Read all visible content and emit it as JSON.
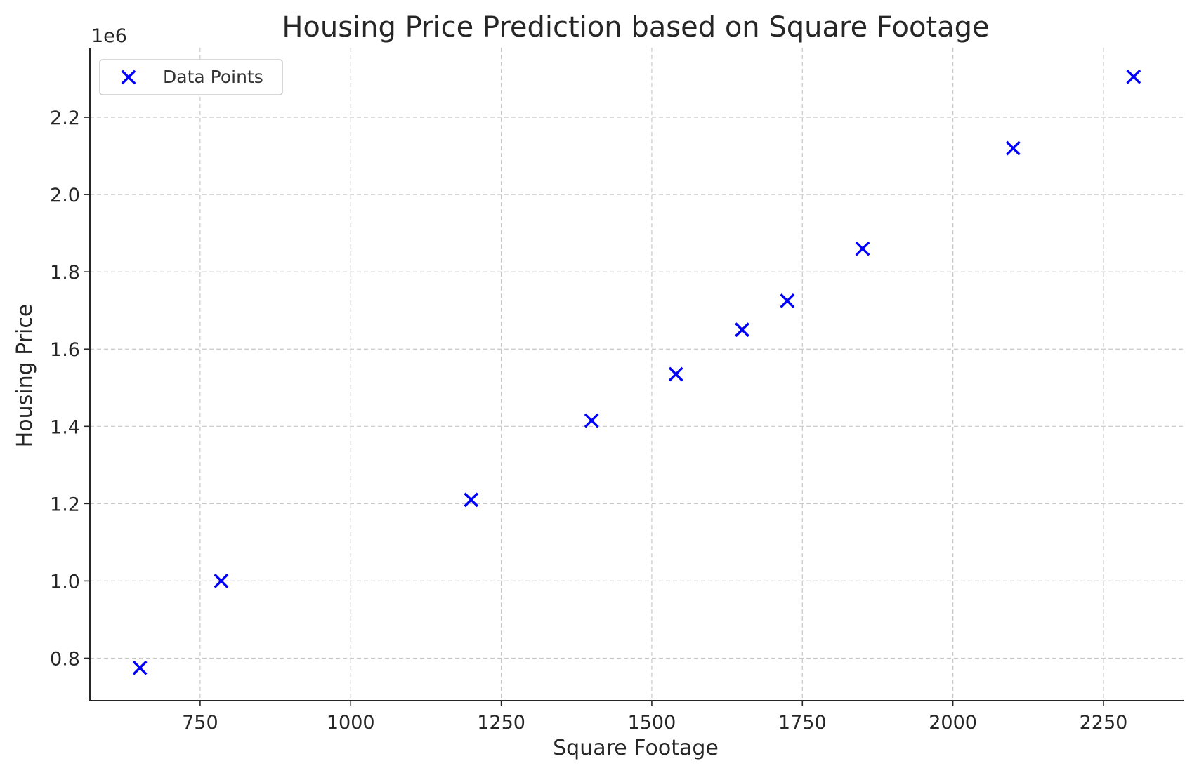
{
  "chart_data": {
    "type": "scatter",
    "title": "Housing Price Prediction based on Square Footage",
    "xlabel": "Square Footage",
    "ylabel": "Housing Price",
    "y_offset_label": "1e6",
    "xlim": [
      567,
      2383
    ],
    "ylim": [
      690000,
      2380000
    ],
    "x_ticks": [
      750,
      1000,
      1250,
      1500,
      1750,
      2000,
      2250
    ],
    "x_tick_labels": [
      "750",
      "1000",
      "1250",
      "1500",
      "1750",
      "2000",
      "2250"
    ],
    "y_ticks": [
      800000,
      1000000,
      1200000,
      1400000,
      1600000,
      1800000,
      2000000,
      2200000
    ],
    "y_tick_labels": [
      "0.8",
      "1.0",
      "1.2",
      "1.4",
      "1.6",
      "1.8",
      "2.0",
      "2.2"
    ],
    "grid": true,
    "legend_position": "upper-left",
    "marker": "x",
    "series": [
      {
        "name": "Data Points",
        "color": "#0000ff",
        "x": [
          650,
          785,
          1200,
          1400,
          1540,
          1650,
          1725,
          1850,
          2100,
          2300
        ],
        "y": [
          775000,
          1000000,
          1210000,
          1415000,
          1535000,
          1650000,
          1725000,
          1860000,
          2120000,
          2305000
        ]
      }
    ]
  }
}
